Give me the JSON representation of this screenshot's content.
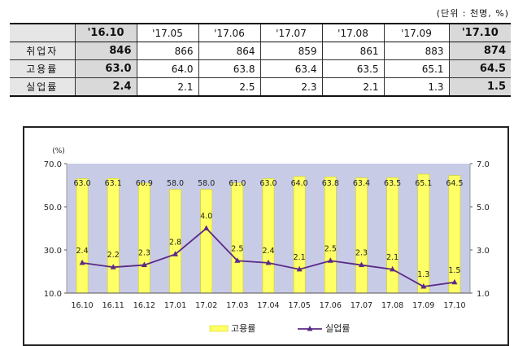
{
  "unit_note": "(단위 : 천명, %)",
  "table": {
    "columns": [
      "'16.10",
      "'17.05",
      "'17.06",
      "'17.07",
      "'17.08",
      "'17.09",
      "'17.10"
    ],
    "highlight_cols": [
      0,
      6
    ],
    "rows": [
      {
        "label": "취업자",
        "values": [
          "846",
          "866",
          "864",
          "859",
          "861",
          "883",
          "874"
        ]
      },
      {
        "label": "고용률",
        "values": [
          "63.0",
          "64.0",
          "63.8",
          "63.4",
          "63.5",
          "65.1",
          "64.5"
        ]
      },
      {
        "label": "실업률",
        "values": [
          "2.4",
          "2.1",
          "2.5",
          "2.3",
          "2.1",
          "1.3",
          "1.5"
        ]
      }
    ]
  },
  "chart_data": {
    "type": "bar",
    "categories": [
      "16.10",
      "16.11",
      "16.12",
      "17.01",
      "17.02",
      "17.03",
      "17.04",
      "17.05",
      "17.06",
      "17.07",
      "17.08",
      "17.09",
      "17.10"
    ],
    "ylabel": "(%)",
    "series": [
      {
        "name": "고용률",
        "type": "bar",
        "axis": "left",
        "color": "#ffff66",
        "values": [
          63.0,
          63.1,
          60.9,
          58.0,
          58.0,
          61.0,
          63.0,
          64.0,
          63.8,
          63.4,
          63.5,
          65.1,
          64.5
        ],
        "labels": [
          "63.0",
          "63.1",
          "60.9",
          "58.0",
          "58.0",
          "61.0",
          "63.0",
          "64.0",
          "63.8",
          "63.4",
          "63.5",
          "65.1",
          "64.5"
        ]
      },
      {
        "name": "실업률",
        "type": "line",
        "axis": "right",
        "color": "#5b2a86",
        "values": [
          2.4,
          2.2,
          2.3,
          2.8,
          4.0,
          2.5,
          2.4,
          2.1,
          2.5,
          2.3,
          2.1,
          1.3,
          1.5
        ],
        "labels": [
          "2.4",
          "2.2",
          "2.3",
          "2.8",
          "4.0",
          "2.5",
          "2.4",
          "2.1",
          "2.5",
          "2.3",
          "2.1",
          "1.3",
          "1.5"
        ]
      }
    ],
    "y_left": {
      "min": 10,
      "max": 70,
      "ticks": [
        "10.0",
        "30.0",
        "50.0",
        "70.0"
      ],
      "tick_values": [
        10,
        30,
        50,
        70
      ]
    },
    "y_right": {
      "min": 1,
      "max": 7,
      "ticks": [
        "1.0",
        "3.0",
        "5.0",
        "7.0"
      ],
      "tick_values": [
        1,
        3,
        5,
        7
      ]
    },
    "plot_background": "#c8cbe6",
    "legend_position": "bottom",
    "legend": [
      "고용률",
      "실업률"
    ]
  }
}
